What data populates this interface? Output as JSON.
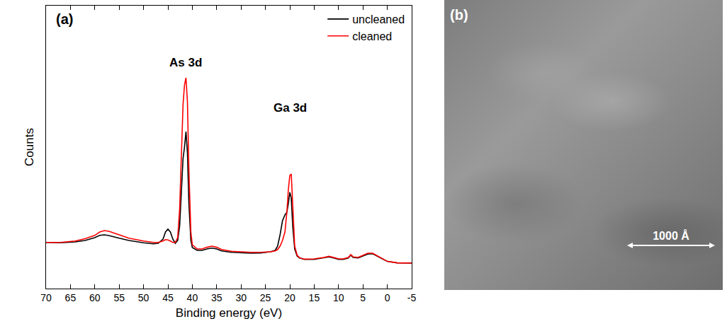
{
  "chart_data": {
    "type": "line",
    "panel_label": "(a)",
    "x_label": "Binding energy (eV)",
    "y_label": "Counts",
    "x": [
      70,
      67,
      64,
      62,
      60,
      59,
      58,
      57,
      55,
      53,
      50,
      48,
      47,
      46,
      45.5,
      45,
      44.5,
      44,
      43.5,
      43,
      42.6,
      42.2,
      41.9,
      41.6,
      41.3,
      41,
      40.7,
      40.3,
      40,
      39,
      38,
      37,
      36,
      35,
      34,
      32,
      30,
      28,
      26,
      24,
      23,
      22.5,
      22,
      21.5,
      21,
      20.6,
      20.3,
      20,
      19.7,
      19.4,
      19,
      18.5,
      18,
      17,
      15,
      13,
      12,
      11,
      10,
      9,
      8,
      7.5,
      7,
      6,
      5,
      4,
      3,
      2,
      1,
      0,
      -2,
      -5
    ],
    "series": [
      {
        "name": "uncleaned",
        "color": "#000000",
        "values": [
          16.3,
          16.2,
          16.5,
          17,
          18,
          18.8,
          19,
          18.7,
          17.8,
          17,
          16.2,
          15.8,
          16,
          17.5,
          20,
          21,
          20,
          17.5,
          16,
          17,
          22,
          35,
          46,
          50,
          55.5,
          48,
          30,
          17,
          14.5,
          13.5,
          13.5,
          14,
          14.3,
          14,
          13.3,
          12.8,
          12.6,
          12.5,
          12.6,
          13,
          13.5,
          15,
          19,
          24,
          26,
          27,
          30,
          34,
          32,
          22,
          14,
          11.5,
          10.8,
          10.3,
          10.3,
          10.8,
          11.2,
          10.8,
          10.3,
          10.3,
          10.8,
          11.8,
          11,
          10.8,
          11.5,
          12.2,
          12.3,
          11.5,
          10.5,
          9.6,
          9.1,
          9
        ]
      },
      {
        "name": "cleaned",
        "color": "#ff0000",
        "values": [
          16.3,
          16.3,
          16.8,
          17.6,
          18.8,
          20,
          20.5,
          20.2,
          19,
          17.8,
          16.8,
          16.3,
          16.3,
          16.8,
          17.3,
          17.2,
          16.8,
          16.3,
          16.3,
          18,
          28,
          50,
          65,
          72,
          74.5,
          66,
          42,
          20,
          15.5,
          14,
          14,
          14.6,
          15,
          14.6,
          13.8,
          13.2,
          13,
          12.8,
          12.8,
          13,
          13.3,
          13.8,
          15,
          17,
          20,
          27,
          35,
          40,
          40.5,
          28,
          15,
          11.8,
          10.9,
          10.4,
          10.5,
          11,
          11.4,
          11,
          10.5,
          10.5,
          11,
          12,
          11.2,
          11,
          11.8,
          12.5,
          12.5,
          11.6,
          10.6,
          9.6,
          9.1,
          9
        ]
      }
    ],
    "xlim": [
      70,
      -5
    ],
    "xticks": [
      70,
      65,
      60,
      55,
      50,
      45,
      40,
      35,
      30,
      25,
      20,
      15,
      10,
      5,
      0,
      -5
    ],
    "ylim": [
      0,
      100
    ],
    "tick_labels": "x",
    "legend": "top right",
    "annotations": [
      {
        "text": "As 3d",
        "x": 41.3,
        "y": 80
      },
      {
        "text": "Ga 3d",
        "x": 20,
        "y": 64
      }
    ]
  },
  "image": {
    "panel_label": "(b)",
    "scale_bar": "1000 Å"
  }
}
